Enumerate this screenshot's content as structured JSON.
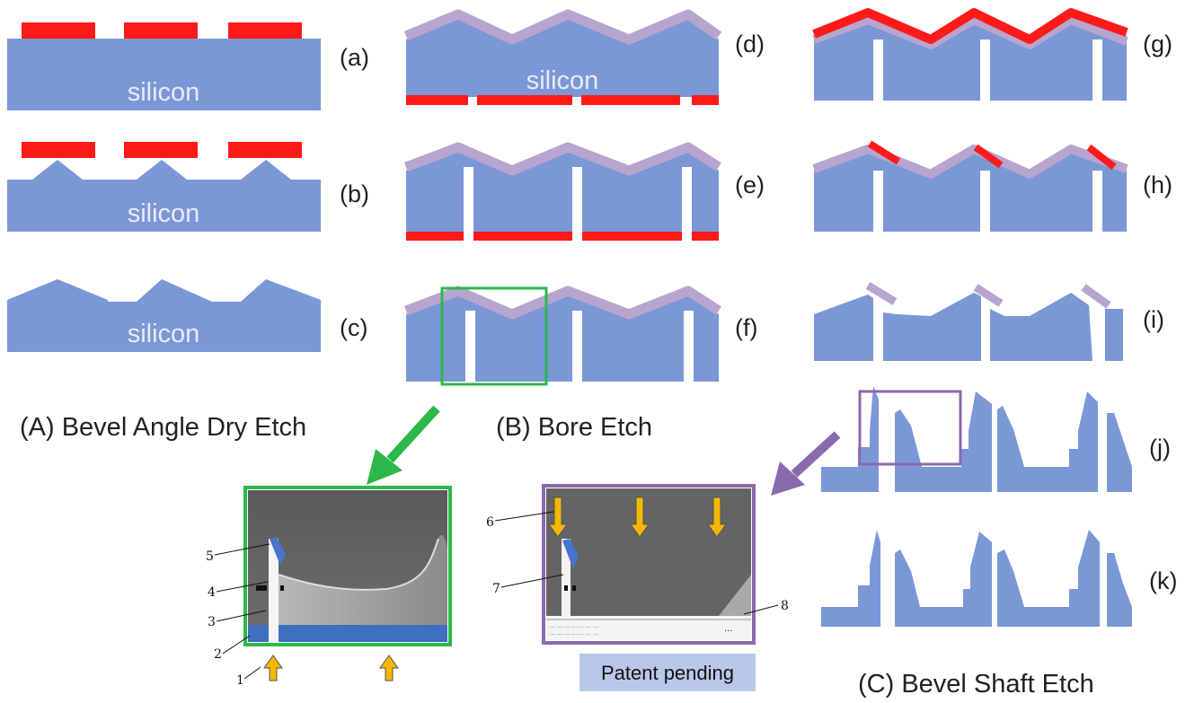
{
  "colors": {
    "silicon": "#7b97d6",
    "mask": "#ff1a1a",
    "oxide": "#b7a5cf",
    "green_box": "#2db84b",
    "purple_box": "#8a69ad",
    "arrow_yellow": "#f5b800",
    "patent_bg": "#b9c7e9"
  },
  "icons": {
    "green_arrow": "arrow-down-left-icon",
    "purple_arrow": "arrow-down-left-icon",
    "yellow_arrow": "arrow-up-icon / arrow-down-icon"
  },
  "steps": {
    "a": "(a)",
    "b": "(b)",
    "c": "(c)",
    "d": "(d)",
    "e": "(e)",
    "f": "(f)",
    "g": "(g)",
    "h": "(h)",
    "i": "(i)",
    "j": "(j)",
    "k": "(k)"
  },
  "silicon_label": "silicon",
  "sections": {
    "A": "(A) Bevel Angle Dry Etch",
    "B": "(B) Bore Etch",
    "C": "(C) Bevel Shaft Etch"
  },
  "callouts": {
    "n1": "1",
    "n2": "2",
    "n3": "3",
    "n4": "4",
    "n5": "5",
    "n6": "6",
    "n7": "7",
    "n8": "8"
  },
  "patent": "Patent pending"
}
